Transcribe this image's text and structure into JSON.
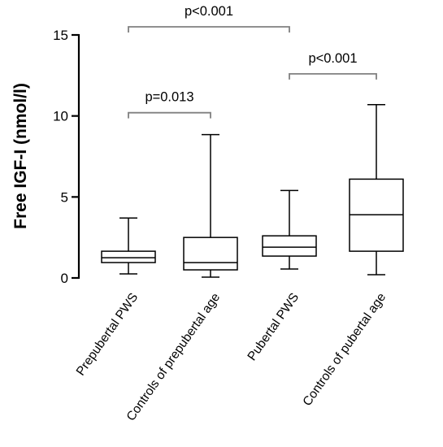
{
  "chart_data": {
    "type": "boxplot",
    "ylabel": "Free IGF-I (nmol/l)",
    "ylim": [
      0,
      15
    ],
    "yticks": [
      0,
      5,
      10,
      15
    ],
    "categories": [
      "Prepubertal PWS",
      "Controls of prepubertal age",
      "Pubertal PWS",
      "Controls of pubertal age"
    ],
    "boxes": [
      {
        "min": 0.25,
        "q1": 0.95,
        "median": 1.25,
        "q3": 1.65,
        "max": 3.7
      },
      {
        "min": 0.05,
        "q1": 0.5,
        "median": 0.95,
        "q3": 2.5,
        "max": 8.85
      },
      {
        "min": 0.55,
        "q1": 1.35,
        "median": 1.9,
        "q3": 2.6,
        "max": 5.4
      },
      {
        "min": 0.2,
        "q1": 1.65,
        "median": 3.9,
        "q3": 6.1,
        "max": 10.7
      }
    ],
    "comparisons": [
      {
        "from": 0,
        "to": 2,
        "y": 15.5,
        "label": "p<0.001"
      },
      {
        "from": 0,
        "to": 1,
        "y": 10.2,
        "label": "p=0.013"
      },
      {
        "from": 2,
        "to": 3,
        "y": 12.6,
        "label": "p<0.001"
      }
    ]
  }
}
